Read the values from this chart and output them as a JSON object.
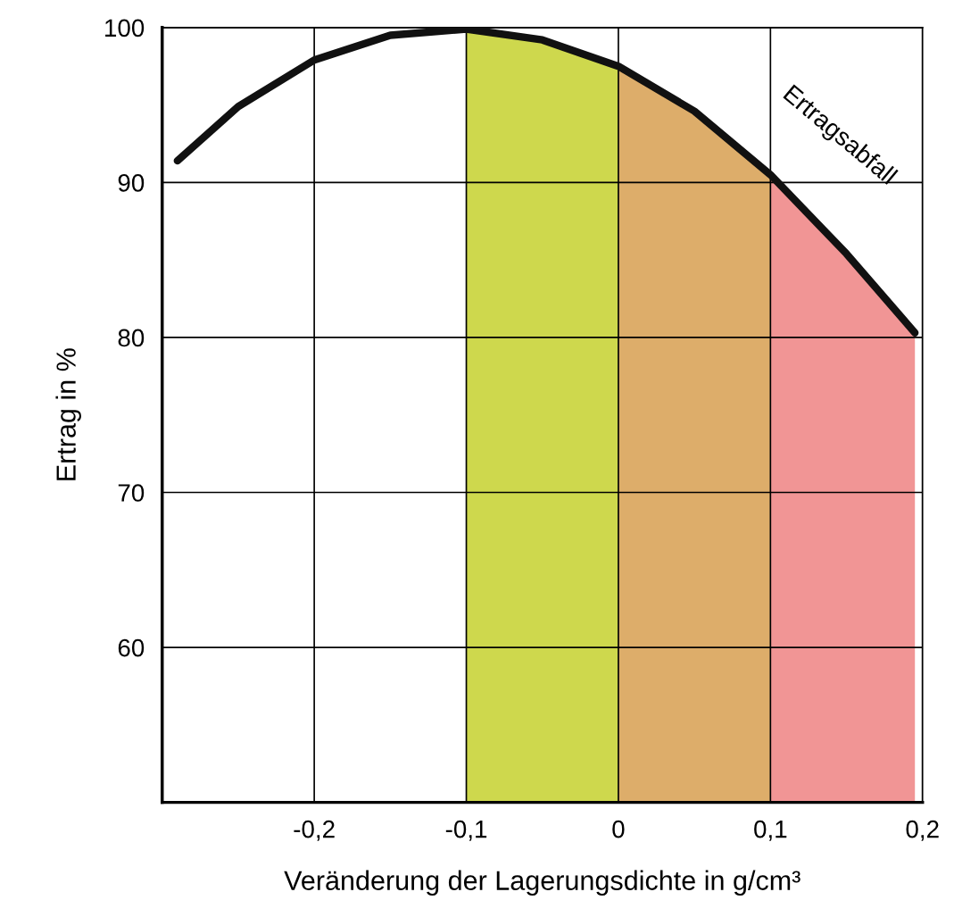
{
  "chart_data": {
    "type": "line",
    "xlabel": "Veränderung der Lagerungsdichte in g/cm³",
    "ylabel": "Ertrag in %",
    "xlim": [
      -0.3,
      0.2
    ],
    "ylim": [
      50,
      100
    ],
    "xticks": [
      {
        "value": -0.2,
        "label": "-0,2"
      },
      {
        "value": -0.1,
        "label": "-0,1"
      },
      0,
      {
        "value": 0.1,
        "label": "0,1"
      },
      {
        "value": 0.2,
        "label": "0,2"
      }
    ],
    "yticks": [
      60,
      70,
      80,
      90,
      100
    ],
    "grid": true,
    "marker": "none",
    "line_style": "solid",
    "series": [
      {
        "color": "#111111",
        "x": [
          -0.29,
          -0.25,
          -0.2,
          -0.15,
          -0.1,
          -0.05,
          0,
          0.05,
          0.1,
          0.15,
          0.195
        ],
        "values": [
          91.4,
          94.9,
          97.9,
          99.5,
          99.9,
          99.2,
          97.5,
          94.6,
          90.5,
          85.4,
          80.3
        ]
      }
    ],
    "bands": [
      {
        "axis": "x",
        "from": -0.1,
        "to": 0,
        "color": "#c9d43a"
      },
      {
        "axis": "x",
        "from": 0,
        "to": 0.1,
        "color": "#d9a45a"
      },
      {
        "axis": "x",
        "from": 0.1,
        "to": 0.2,
        "color": "#f08a8a"
      }
    ],
    "annotations": [
      "Ertragsabfall"
    ]
  }
}
